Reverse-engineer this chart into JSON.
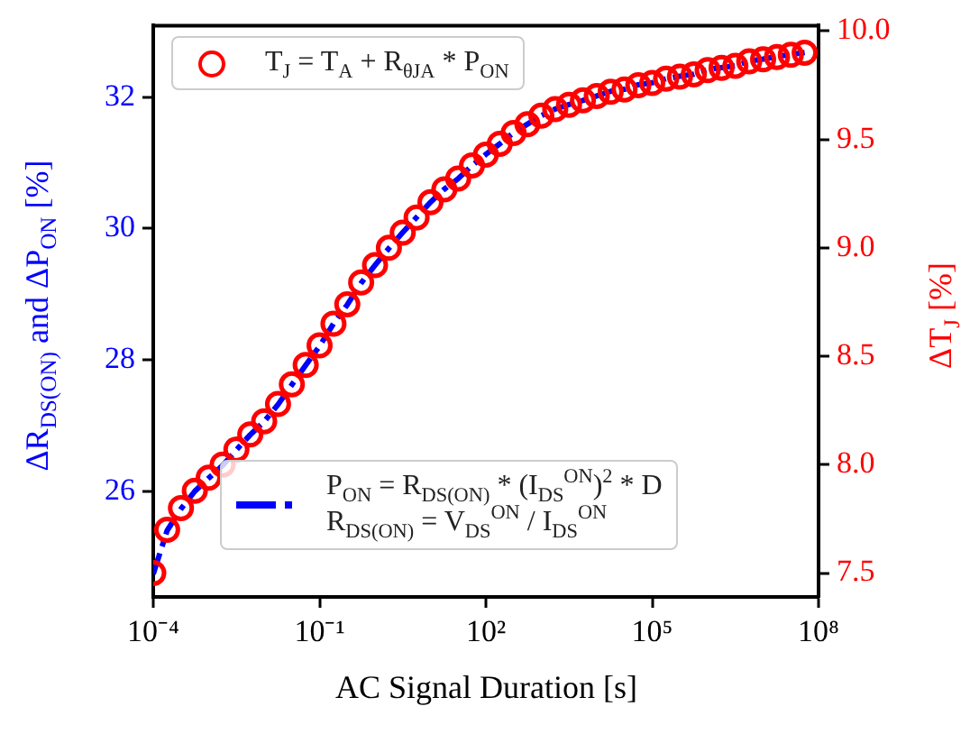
{
  "chart_data": {
    "type": "line",
    "xlabel": "AC Signal Duration [s]",
    "ylabel": "ΔR$_{DS(ON)}$ and ΔP$_{ON}$ [%]",
    "y2label": "ΔT$_{J}$ [%]",
    "log": "x",
    "grid": false,
    "legend": "top",
    "xlim": [
      0.0001,
      100000000
    ],
    "xticks": [
      {
        "value": 0.0001,
        "label": "10⁻⁴"
      },
      {
        "value": 0.1,
        "label": "10⁻¹"
      },
      {
        "value": 100,
        "label": "10²"
      },
      {
        "value": 100000,
        "label": "10⁵"
      },
      {
        "value": 100000000,
        "label": "10⁸"
      }
    ],
    "ylim": [
      24.39,
      33.09
    ],
    "yticks": [
      26,
      28,
      30,
      32
    ],
    "y2lim": [
      7.39,
      10.025
    ],
    "y2ticks": [
      {
        "value": 7.5,
        "label": "7.5"
      },
      {
        "value": 8,
        "label": "8.0"
      },
      {
        "value": 8.5,
        "label": "8.5"
      },
      {
        "value": 9,
        "label": "9.0"
      },
      {
        "value": 9.5,
        "label": "9.5"
      },
      {
        "value": 10,
        "label": "10.0"
      }
    ],
    "x": [
      0.0001,
      0.000178,
      0.000316,
      0.000562,
      0.001,
      0.00178,
      0.00316,
      0.00562,
      0.01,
      0.0178,
      0.0316,
      0.0562,
      0.1,
      0.178,
      0.316,
      0.562,
      1,
      1.78,
      3.16,
      5.62,
      10,
      17.8,
      31.6,
      56.2,
      100,
      178,
      316,
      562,
      1000,
      1780,
      3160,
      5620,
      10000,
      17800,
      31600,
      56200,
      100000,
      178000,
      316000,
      562000,
      1000000,
      1780000,
      3160000,
      5620000,
      10000000,
      17800000,
      31600000,
      56200000
    ],
    "series": [
      {
        "name": "P$_{ON}$ = R$_{DS(ON)}$ * (I$_{DS}$$^{ON}$)$^{2}$ * D\nR$_{DS(ON)}$ = V$_{DS}$$^{ON}$ / I$_{DS}$$^{ON}$",
        "type": "line",
        "color": "#0000ff",
        "marker": "none",
        "line_style": "dashed",
        "values": [
          24.74,
          25.4,
          25.73,
          26.0,
          26.2,
          26.39,
          26.63,
          26.86,
          27.06,
          27.32,
          27.62,
          27.92,
          28.21,
          28.55,
          28.84,
          29.17,
          29.44,
          29.7,
          29.94,
          30.17,
          30.4,
          30.6,
          30.76,
          30.96,
          31.13,
          31.29,
          31.46,
          31.59,
          31.72,
          31.82,
          31.89,
          31.95,
          32.02,
          32.09,
          32.12,
          32.19,
          32.22,
          32.28,
          32.32,
          32.35,
          32.42,
          32.45,
          32.48,
          32.55,
          32.58,
          32.62,
          32.65,
          32.68
        ]
      },
      {
        "name": "T$_{J}$ = T$_{A}$ + R$_{θJA}$ * P$_{ON}$",
        "type": "scatter",
        "axis": "y2",
        "color": "#ff0000",
        "marker": "circle",
        "values": [
          7.5,
          7.7,
          7.8,
          7.88,
          7.94,
          8.0,
          8.07,
          8.14,
          8.2,
          8.28,
          8.37,
          8.46,
          8.55,
          8.65,
          8.74,
          8.84,
          8.92,
          9.0,
          9.07,
          9.14,
          9.21,
          9.27,
          9.32,
          9.38,
          9.43,
          9.48,
          9.53,
          9.57,
          9.61,
          9.64,
          9.66,
          9.68,
          9.7,
          9.72,
          9.73,
          9.75,
          9.76,
          9.78,
          9.79,
          9.8,
          9.82,
          9.83,
          9.84,
          9.86,
          9.87,
          9.88,
          9.89,
          9.9
        ]
      }
    ]
  }
}
